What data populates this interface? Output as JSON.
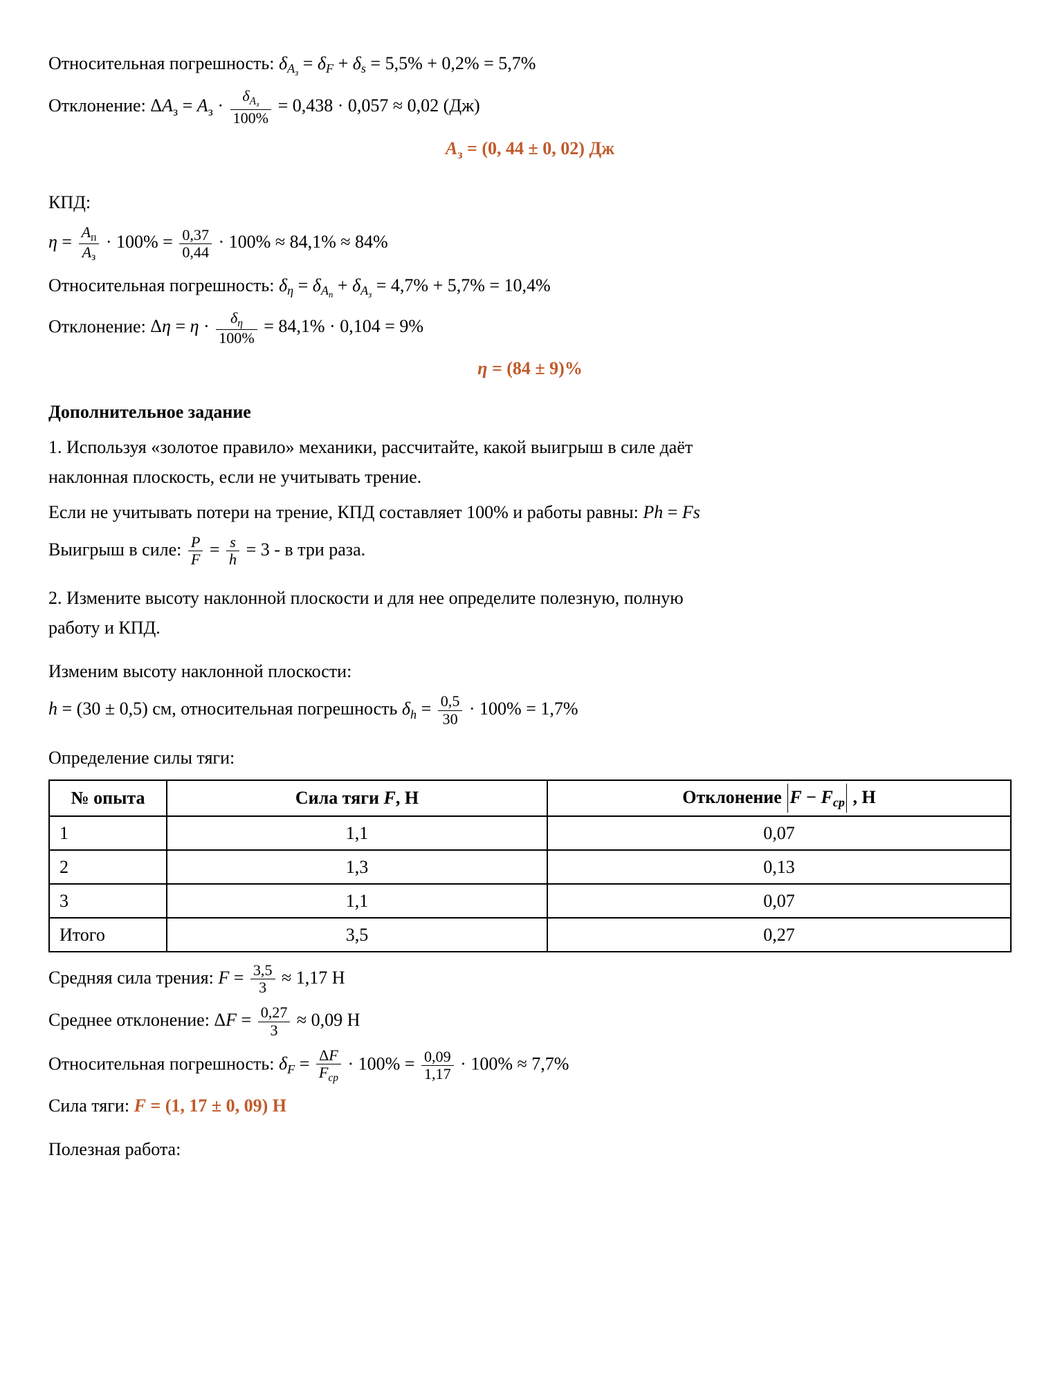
{
  "line1_prefix": "Относительная погрешность: ",
  "line1_expr_html": "<span class='math'>δ<sub>A<sub>з</sub></sub></span> = <span class='math'>δ<sub>F</sub></span> + <span class='math'>δ<sub>s</sub></span> = 5,5% + 0,2% = 5,7%",
  "line2_prefix": "Отклонение: ",
  "line2_expr_html": "Δ<span class='math'>A</span><sub>з</sub> = <span class='math'>A</span><sub>з</sub> · <span class='frac'><span class='num'><span class='math'>δ<sub>A<sub>з</sub></sub></span></span><span class='den'>100%</span></span> = 0,438 · 0,057 ≈ 0,02 (Дж)",
  "result1_html": "<span class='math'>A</span><sub>з</sub> = (0, 44 ± 0, 02) Дж",
  "kpd_label": "КПД:",
  "eta_expr_html": "<span class='math'>η</span> = <span class='frac'><span class='num'><span class='math'>A</span><sub>п</sub></span><span class='den'><span class='math'>A</span><sub>з</sub></span></span> · 100% = <span class='frac'><span class='num'>0,37</span><span class='den'>0,44</span></span> · 100% ≈ 84,1% ≈ 84%",
  "eta_err_prefix": "Относительная погрешность: ",
  "eta_err_html": "<span class='math'>δ<sub>η</sub></span> = <span class='math'>δ<sub>A<sub>п</sub></sub></span> + <span class='math'>δ<sub>A<sub>з</sub></sub></span> = 4,7% + 5,7% = 10,4%",
  "eta_dev_prefix": "Отклонение: ",
  "eta_dev_html": "Δ<span class='math'>η</span> = <span class='math'>η</span> · <span class='frac'><span class='num'><span class='math'>δ<sub>η</sub></span></span><span class='den'>100%</span></span> = 84,1% · 0,104 = 9%",
  "result2_html": "<span class='math'>η</span> = (84 ± 9)%",
  "extra_heading": "Дополнительное задание",
  "q1_line1": "1. Используя «золотое правило» механики, рассчитайте, какой выигрыш в силе даёт",
  "q1_line2": "наклонная плоскость, если не учитывать трение.",
  "q1_ans1_html": "Если не учитывать потери на трение, КПД составляет 100% и работы равны: <span class='math'>Ph</span> = <span class='math'>Fs</span>",
  "q1_ans2_html": "Выигрыш в силе: <span class='frac'><span class='num'><span class='math'>P</span></span><span class='den'><span class='math'>F</span></span></span> = <span class='frac'><span class='num'><span class='math'>s</span></span><span class='den'><span class='math'>h</span></span></span> = 3 - в три раза.",
  "q2_line1": "2. Измените высоту наклонной плоскости и для нее определите полезную, полную",
  "q2_line2": "работу и КПД.",
  "change_h_label": "Изменим высоту наклонной плоскости:",
  "h_expr_html": "<span class='math'>h</span> = (30 ± 0,5) см, относительная погрешность <span class='math'>δ<sub>h</sub></span> = <span class='frac'><span class='num'>0,5</span><span class='den'>30</span></span> · 100% = 1,7%",
  "table_caption": "Определение силы тяги:",
  "table": {
    "header": {
      "c1": "№ опыта",
      "c2_html": "Сила тяги <span class='math'>F</span>, Н",
      "c3_html": "Отклонение <span class='abs'><span class='math'>F</span> − <span class='math'>F<sub>ср</sub></span></span> , Н"
    },
    "rows": [
      {
        "c1": "1",
        "c2": "1,1",
        "c3": "0,07"
      },
      {
        "c1": "2",
        "c2": "1,3",
        "c3": "0,13"
      },
      {
        "c1": "3",
        "c2": "1,1",
        "c3": "0,07"
      },
      {
        "c1": "Итого",
        "c2": "3,5",
        "c3": "0,27"
      }
    ]
  },
  "avgF_html": "Средняя сила трения: <span class='math'>F</span> = <span class='frac'><span class='num'>3,5</span><span class='den'>3</span></span> ≈ 1,17 Н",
  "avgDev_html": "Среднее отклонение: Δ<span class='math'>F</span> = <span class='frac'><span class='num'>0,27</span><span class='den'>3</span></span> ≈ 0,09 Н",
  "relErrF_html": "Относительная погрешность: <span class='math'>δ<sub>F</sub></span> = <span class='frac'><span class='num'>Δ<span class='math'>F</span></span><span class='den'><span class='math'>F<sub>ср</sub></span></span></span> · 100% = <span class='frac'><span class='num'>0,09</span><span class='den'>1,17</span></span> · 100% ≈ 7,7%",
  "forceResult_prefix": "Сила тяги: ",
  "forceResult_html": "<span class='math'>F</span> = (1, 17 ± 0, 09) Н",
  "useful_work_label": "Полезная работа:"
}
